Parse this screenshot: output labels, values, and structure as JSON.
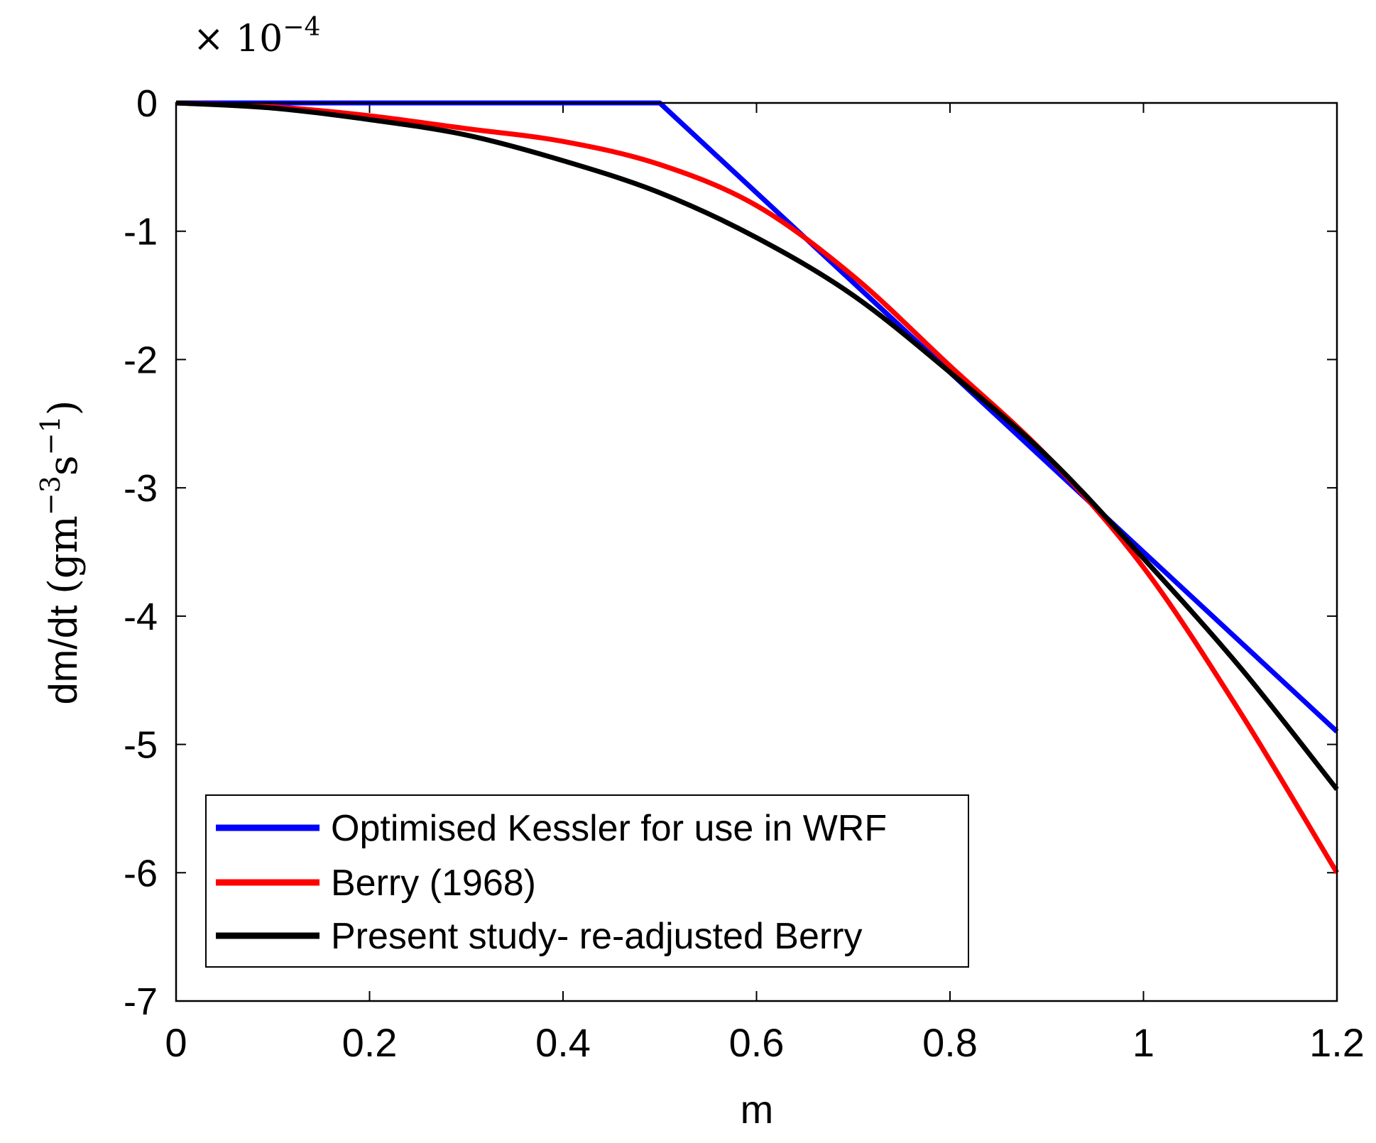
{
  "chart_data": {
    "type": "line",
    "title": "",
    "xlabel": "m",
    "ylabel_text": "dm/dt",
    "ylabel_units_open": "(gm",
    "ylabel_units_exp1": "−3",
    "ylabel_units_s": "s",
    "ylabel_units_exp2": "−1",
    "ylabel_units_close": ")",
    "y_scale_base": "× 10",
    "y_scale_exp": "−4",
    "xlim": [
      0,
      1.2
    ],
    "ylim": [
      -7,
      0
    ],
    "xticks": [
      0,
      0.2,
      0.4,
      0.6,
      0.8,
      1,
      1.2
    ],
    "xtick_labels": [
      "0",
      "0.2",
      "0.4",
      "0.6",
      "0.8",
      "1",
      "1.2"
    ],
    "yticks": [
      0,
      -1,
      -2,
      -3,
      -4,
      -5,
      -6,
      -7
    ],
    "ytick_labels": [
      "0",
      "-1",
      "-2",
      "-3",
      "-4",
      "-5",
      "-6",
      "-7"
    ],
    "grid": false,
    "legend_position": "bottom-left",
    "series": [
      {
        "name": "Optimised Kessler for use in WRF",
        "color": "#0000ff",
        "x": [
          0,
          0.5,
          1.2
        ],
        "y": [
          0,
          0,
          -4.9
        ]
      },
      {
        "name": "Berry (1968)",
        "color": "#ff0000",
        "x": [
          0,
          0.1,
          0.2,
          0.3,
          0.4,
          0.5,
          0.6,
          0.7,
          0.8,
          0.9,
          1.0,
          1.1,
          1.2
        ],
        "y": [
          0,
          -0.03,
          -0.1,
          -0.2,
          -0.3,
          -0.48,
          -0.8,
          -1.35,
          -2.05,
          -2.75,
          -3.62,
          -4.75,
          -6.0
        ]
      },
      {
        "name": "Present study- re-adjusted Berry",
        "color": "#000000",
        "x": [
          0,
          0.1,
          0.2,
          0.3,
          0.4,
          0.5,
          0.6,
          0.7,
          0.8,
          0.9,
          1.0,
          1.1,
          1.2
        ],
        "y": [
          0,
          -0.04,
          -0.13,
          -0.25,
          -0.45,
          -0.7,
          -1.05,
          -1.5,
          -2.1,
          -2.75,
          -3.55,
          -4.4,
          -5.35
        ]
      }
    ]
  }
}
